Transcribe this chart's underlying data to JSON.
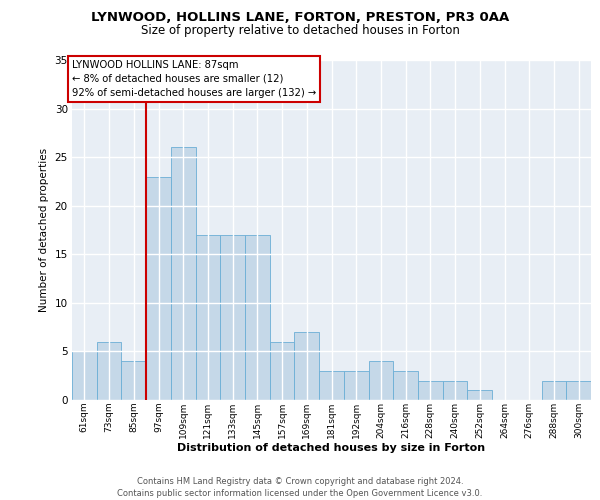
{
  "title": "LYNWOOD, HOLLINS LANE, FORTON, PRESTON, PR3 0AA",
  "subtitle": "Size of property relative to detached houses in Forton",
  "xlabel": "Distribution of detached houses by size in Forton",
  "ylabel": "Number of detached properties",
  "categories": [
    "61sqm",
    "73sqm",
    "85sqm",
    "97sqm",
    "109sqm",
    "121sqm",
    "133sqm",
    "145sqm",
    "157sqm",
    "169sqm",
    "181sqm",
    "192sqm",
    "204sqm",
    "216sqm",
    "228sqm",
    "240sqm",
    "252sqm",
    "264sqm",
    "276sqm",
    "288sqm",
    "300sqm"
  ],
  "values": [
    5,
    6,
    4,
    23,
    26,
    17,
    17,
    17,
    6,
    7,
    3,
    3,
    4,
    3,
    2,
    2,
    1,
    0,
    0,
    2,
    2
  ],
  "bar_color": "#c5d8e8",
  "bar_edge_color": "#6baed6",
  "vline_x_index": 2,
  "vline_color": "#cc0000",
  "annotation_text": "LYNWOOD HOLLINS LANE: 87sqm\n← 8% of detached houses are smaller (12)\n92% of semi-detached houses are larger (132) →",
  "annotation_box_color": "#ffffff",
  "annotation_box_edge_color": "#cc0000",
  "ylim": [
    0,
    35
  ],
  "yticks": [
    0,
    5,
    10,
    15,
    20,
    25,
    30,
    35
  ],
  "background_color": "#e8eef5",
  "grid_color": "#ffffff",
  "footer": "Contains HM Land Registry data © Crown copyright and database right 2024.\nContains public sector information licensed under the Open Government Licence v3.0."
}
